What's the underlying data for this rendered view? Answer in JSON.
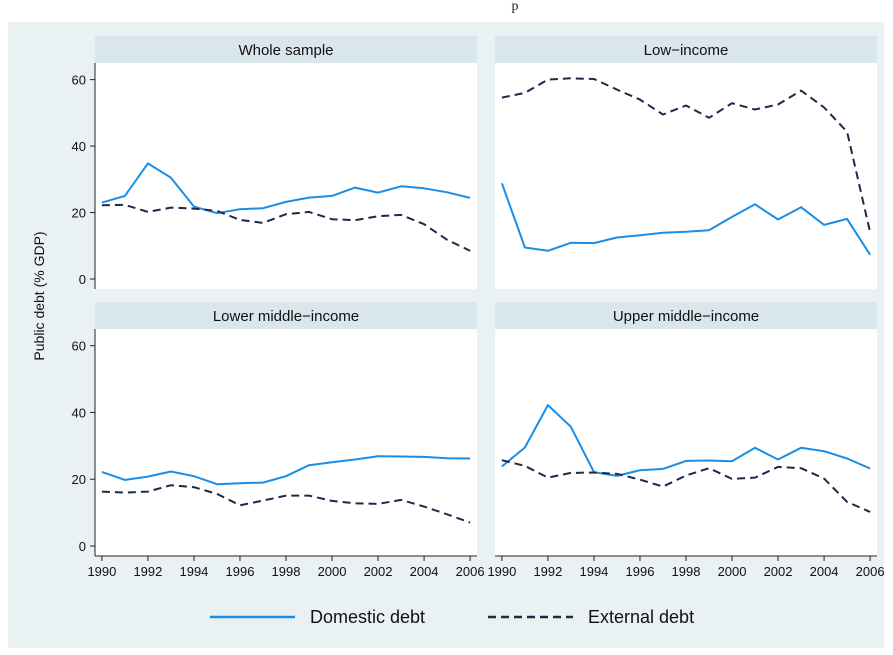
{
  "page": {
    "top_fragment": "p"
  },
  "colors": {
    "background": "#eaf1f3",
    "panel_bg": "#ffffff",
    "strip_bg": "#d9e6eb",
    "domestic": "#1a8ee6",
    "external": "#1c2a4a"
  },
  "chart_data": {
    "type": "line",
    "ylabel": "Public debt (% GDP)",
    "xlabel": "",
    "x": [
      1990,
      1991,
      1992,
      1993,
      1994,
      1995,
      1996,
      1997,
      1998,
      1999,
      2000,
      2001,
      2002,
      2003,
      2004,
      2005,
      2006
    ],
    "x_ticks": [
      "1990",
      "1992",
      "1994",
      "1996",
      "1998",
      "2000",
      "2002",
      "2004",
      "2006"
    ],
    "y_ticks": [
      "0",
      "20",
      "40",
      "60"
    ],
    "ylim": [
      -3,
      65
    ],
    "xlim": [
      1989.7,
      2006.3
    ],
    "grid": false,
    "legend": {
      "placement": "bottom",
      "entries": [
        "Domestic debt",
        "External debt"
      ]
    },
    "panels": [
      {
        "title": "Whole sample",
        "series": [
          {
            "name": "Domestic debt",
            "style": "solid",
            "values": [
              23.0,
              25.0,
              34.8,
              30.5,
              21.8,
              19.8,
              21.0,
              21.3,
              23.2,
              24.5,
              25.0,
              27.5,
              26.0,
              27.9,
              27.3,
              26.1,
              24.4
            ]
          },
          {
            "name": "External debt",
            "style": "dashed",
            "values": [
              22.2,
              22.3,
              20.2,
              21.5,
              21.2,
              20.5,
              17.8,
              16.9,
              19.5,
              20.2,
              18.0,
              17.7,
              18.9,
              19.3,
              16.5,
              11.8,
              8.5
            ]
          }
        ]
      },
      {
        "title": "Low−income",
        "series": [
          {
            "name": "Domestic debt",
            "style": "solid",
            "values": [
              28.8,
              9.5,
              8.5,
              10.9,
              10.8,
              12.5,
              13.2,
              13.9,
              14.2,
              14.7,
              18.7,
              22.5,
              17.9,
              21.6,
              16.3,
              18.1,
              7.3
            ]
          },
          {
            "name": "External debt",
            "style": "dashed",
            "values": [
              54.6,
              56.0,
              60.0,
              60.4,
              60.2,
              57.0,
              54.0,
              49.5,
              52.2,
              48.5,
              52.9,
              51.0,
              52.5,
              56.7,
              51.6,
              44.3,
              14.1
            ]
          }
        ]
      },
      {
        "title": "Lower middle−income",
        "series": [
          {
            "name": "Domestic debt",
            "style": "solid",
            "values": [
              22.2,
              19.8,
              20.8,
              22.3,
              20.9,
              18.5,
              18.8,
              19.0,
              20.9,
              24.2,
              25.1,
              25.9,
              26.9,
              26.8,
              26.7,
              26.3,
              26.2
            ]
          },
          {
            "name": "External debt",
            "style": "dashed",
            "values": [
              16.3,
              16.0,
              16.3,
              18.2,
              17.6,
              15.6,
              12.2,
              13.6,
              15.1,
              15.1,
              13.5,
              12.8,
              12.6,
              13.8,
              11.8,
              9.5,
              7.0
            ]
          }
        ]
      },
      {
        "title": "Upper middle−income",
        "series": [
          {
            "name": "Domestic debt",
            "style": "solid",
            "values": [
              23.8,
              29.5,
              42.2,
              35.7,
              22.1,
              21.0,
              22.7,
              23.1,
              25.5,
              25.6,
              25.4,
              29.4,
              25.9,
              29.4,
              28.4,
              26.2,
              23.2
            ]
          },
          {
            "name": "External debt",
            "style": "dashed",
            "values": [
              25.7,
              24.0,
              20.5,
              21.9,
              22.0,
              21.6,
              19.9,
              17.8,
              21.1,
              23.3,
              20.1,
              20.5,
              23.7,
              23.3,
              20.2,
              13.2,
              10.2
            ]
          }
        ]
      }
    ]
  }
}
